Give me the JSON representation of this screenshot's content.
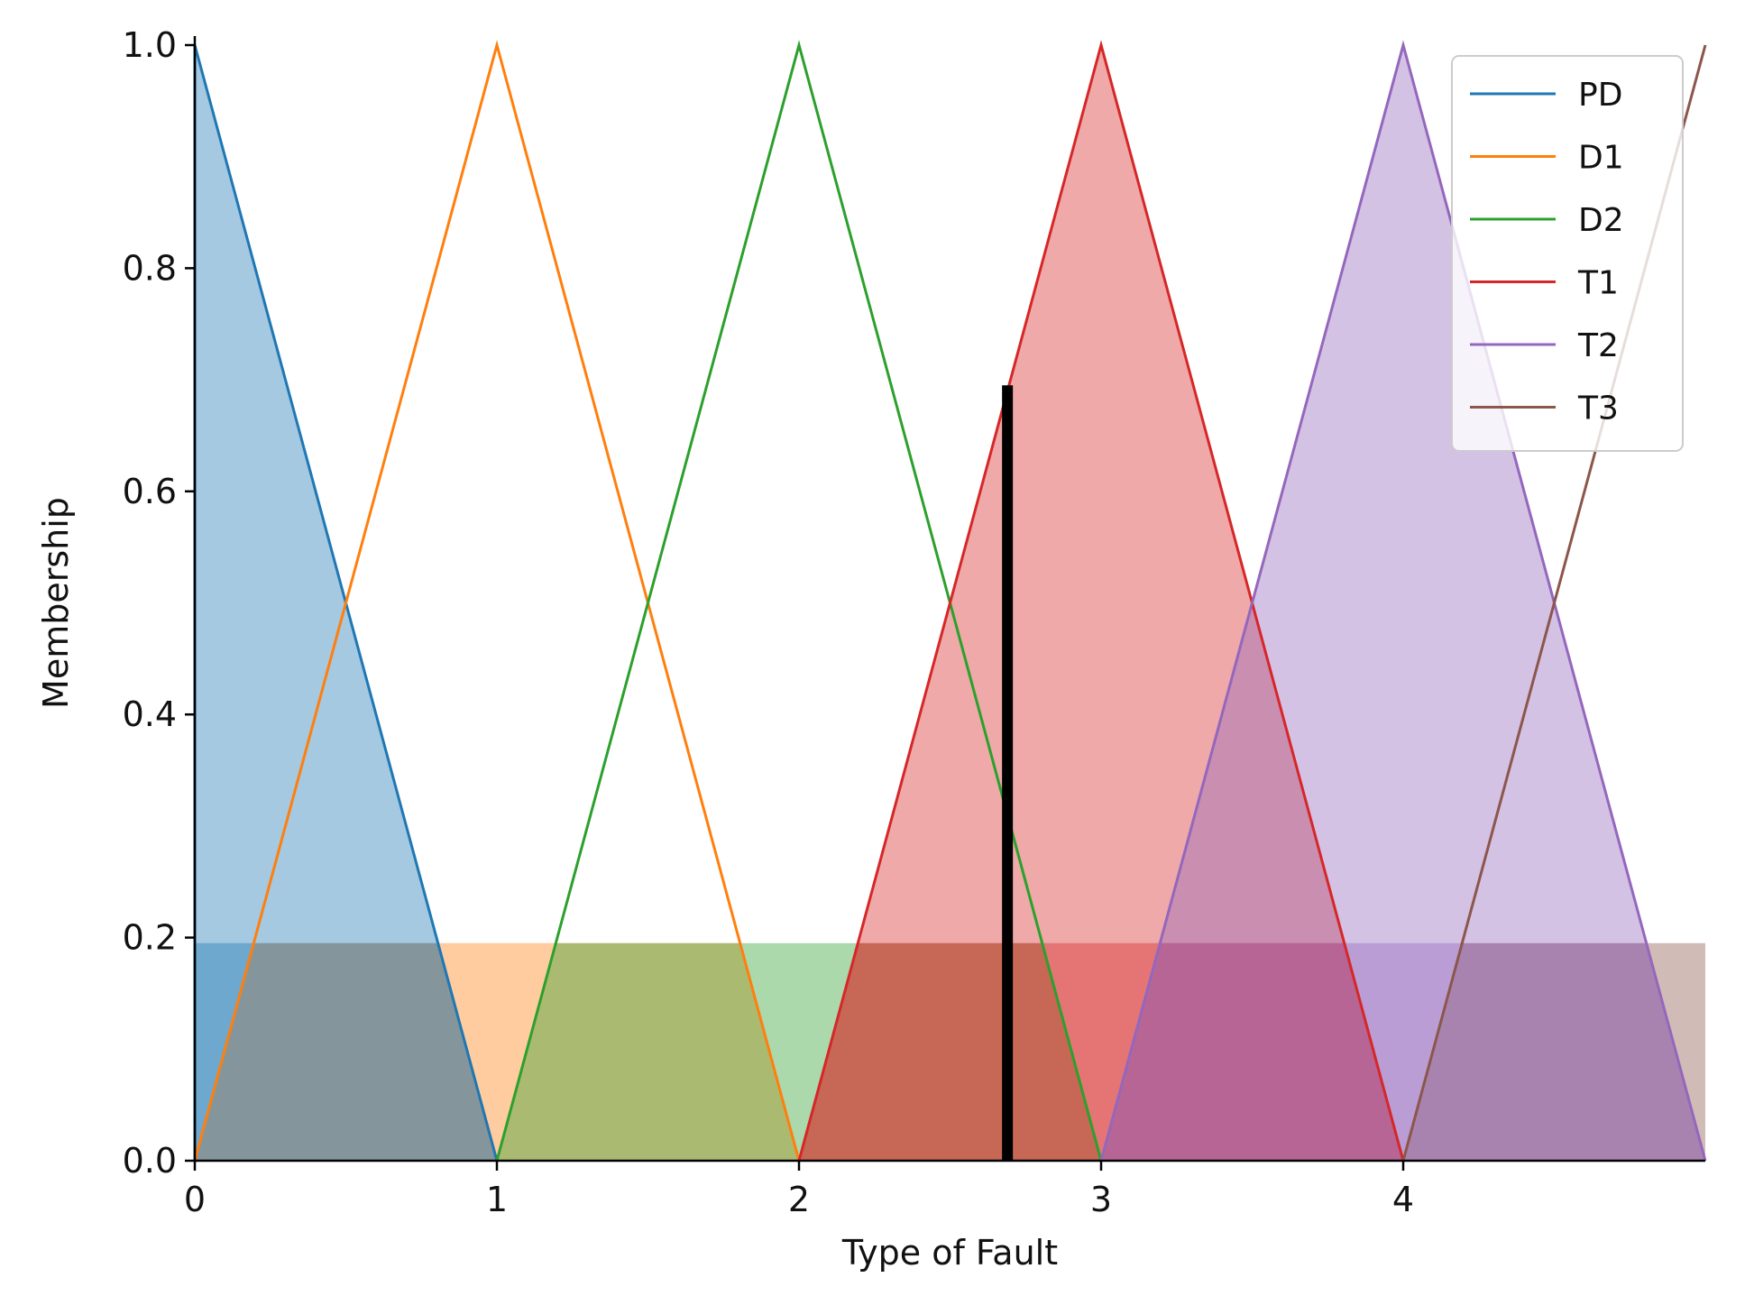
{
  "chart_data": {
    "type": "area",
    "title": "",
    "xlabel": "Type of Fault",
    "ylabel": "Membership",
    "xlim": [
      0,
      5
    ],
    "ylim": [
      0,
      1
    ],
    "x_ticks": [
      "0",
      "1",
      "2",
      "3",
      "4"
    ],
    "y_ticks": [
      "0.0",
      "0.2",
      "0.4",
      "0.6",
      "0.8",
      "1.0"
    ],
    "grid": false,
    "legend_position": "top-right",
    "series": [
      {
        "name": "PD",
        "color": "#1f77b4",
        "x": [
          0,
          0,
          1
        ],
        "y": [
          0,
          1,
          0
        ]
      },
      {
        "name": "D1",
        "color": "#ff7f0e",
        "x": [
          0,
          1,
          2
        ],
        "y": [
          0,
          1,
          0
        ]
      },
      {
        "name": "D2",
        "color": "#2ca02c",
        "x": [
          1,
          2,
          3
        ],
        "y": [
          0,
          1,
          0
        ]
      },
      {
        "name": "T1",
        "color": "#d62728",
        "x": [
          2,
          3,
          4
        ],
        "y": [
          0,
          1,
          0
        ]
      },
      {
        "name": "T2",
        "color": "#9467bd",
        "x": [
          3,
          4,
          5
        ],
        "y": [
          0,
          1,
          0
        ]
      },
      {
        "name": "T3",
        "color": "#8c564b",
        "x": [
          4,
          5,
          5
        ],
        "y": [
          0,
          1,
          1
        ]
      }
    ],
    "fill_alpha": 0.4,
    "clipped_fill_level": 0.195,
    "output_marker": {
      "x": 2.69,
      "y": 0.695,
      "color": "#000000"
    }
  }
}
